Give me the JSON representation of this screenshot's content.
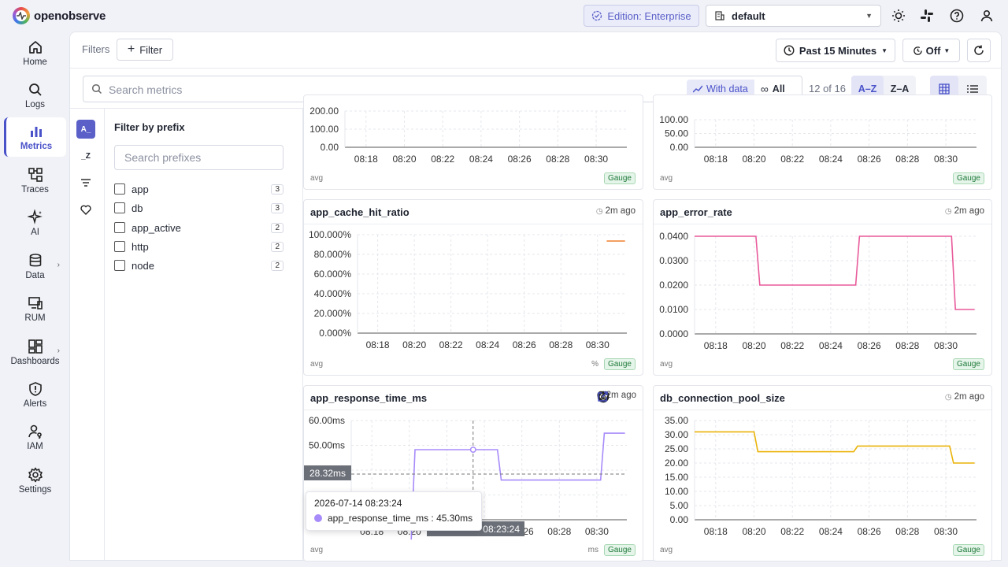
{
  "app": {
    "logo_text": "openobserve"
  },
  "header": {
    "edition_label": "Edition: Enterprise",
    "org_value": "default"
  },
  "sidebar": {
    "items": [
      {
        "label": "Home"
      },
      {
        "label": "Logs"
      },
      {
        "label": "Metrics"
      },
      {
        "label": "Traces"
      },
      {
        "label": "AI"
      },
      {
        "label": "Data"
      },
      {
        "label": "RUM"
      },
      {
        "label": "Dashboards"
      },
      {
        "label": "Alerts"
      },
      {
        "label": "IAM"
      },
      {
        "label": "Settings"
      }
    ]
  },
  "toolbar": {
    "filters_label": "Filters",
    "add_filter_label": "Filter",
    "time_range": "Past 15 Minutes",
    "refresh_interval": "Off"
  },
  "search": {
    "placeholder": "Search metrics",
    "with_data": "With data",
    "all": "All",
    "count": "12 of 16",
    "sort_az": "A–Z",
    "sort_za": "Z–A"
  },
  "rail": {
    "az": "A_",
    "z": "_Z"
  },
  "prefix": {
    "title": "Filter by prefix",
    "search_placeholder": "Search prefixes",
    "items": [
      {
        "label": "app",
        "count": "3"
      },
      {
        "label": "db",
        "count": "3"
      },
      {
        "label": "app_active",
        "count": "2"
      },
      {
        "label": "http",
        "count": "2"
      },
      {
        "label": "node",
        "count": "2"
      }
    ]
  },
  "cards": {
    "top_left": {
      "agg": "avg",
      "type": "Gauge"
    },
    "top_right": {
      "agg": "avg",
      "type": "Gauge"
    },
    "cache": {
      "title": "app_cache_hit_ratio",
      "age": "2m ago",
      "agg": "avg",
      "unit": "%",
      "type": "Gauge"
    },
    "error": {
      "title": "app_error_rate",
      "age": "2m ago",
      "agg": "avg",
      "type": "Gauge"
    },
    "response": {
      "title": "app_response_time_ms",
      "age": "2m ago",
      "agg": "avg",
      "unit": "ms",
      "type": "Gauge"
    },
    "pool": {
      "title": "db_connection_pool_size",
      "age": "2m ago",
      "agg": "avg",
      "type": "Gauge"
    }
  },
  "tooltip": {
    "time": "2026-07-14 08:23:24",
    "series": "app_response_time_ms : 45.30ms",
    "y_cursor": "28.32ms",
    "x_cursor": "08:23:24"
  },
  "chart_data": [
    {
      "type": "line",
      "name_ref": "top_left",
      "y_ticks": [
        "0.00",
        "100.00",
        "200.00"
      ],
      "x_ticks": [
        "08:18",
        "08:20",
        "08:22",
        "08:24",
        "08:26",
        "08:28",
        "08:30"
      ],
      "series": []
    },
    {
      "type": "line",
      "name_ref": "top_right",
      "y_ticks": [
        "0.00",
        "50.00",
        "100.00"
      ],
      "x_ticks": [
        "08:18",
        "08:20",
        "08:22",
        "08:24",
        "08:26",
        "08:28",
        "08:30"
      ],
      "series": []
    },
    {
      "type": "line",
      "title": "app_cache_hit_ratio",
      "y_ticks": [
        "0.000%",
        "20.000%",
        "40.000%",
        "60.000%",
        "80.000%",
        "100.000%"
      ],
      "ylim": [
        0,
        100
      ],
      "x_ticks": [
        "08:18",
        "08:20",
        "08:22",
        "08:24",
        "08:26",
        "08:28",
        "08:30"
      ],
      "series": [
        {
          "color": "#f08a3c",
          "x": [
            30.5,
            31.5
          ],
          "y": [
            93.5,
            93.5
          ]
        }
      ]
    },
    {
      "type": "line",
      "title": "app_error_rate",
      "y_ticks": [
        "0.0000",
        "0.0100",
        "0.0200",
        "0.0300",
        "0.0400"
      ],
      "ylim": [
        0,
        0.04
      ],
      "x_ticks": [
        "08:18",
        "08:20",
        "08:22",
        "08:24",
        "08:26",
        "08:28",
        "08:30"
      ],
      "series": [
        {
          "color": "#e85a9a",
          "x": [
            16.9,
            20.1,
            20.3,
            25.3,
            25.5,
            30.3,
            30.5,
            31.5
          ],
          "y": [
            0.04,
            0.04,
            0.02,
            0.02,
            0.04,
            0.04,
            0.01,
            0.01
          ]
        }
      ]
    },
    {
      "type": "line",
      "title": "app_response_time_ms",
      "y_ticks": [
        "20.00ms",
        "30.00ms",
        "40.00ms",
        "50.00ms",
        "60.00ms"
      ],
      "ylim": [
        10,
        60
      ],
      "x_ticks": [
        "08:18",
        "08:20",
        "08:22",
        "08:24",
        "08:26",
        "08:28",
        "08:30"
      ],
      "series": [
        {
          "color": "#a78bfa",
          "x": [
            20.1,
            20.3,
            24.7,
            24.9,
            30.2,
            30.4,
            31.5
          ],
          "y": [
            0,
            45.3,
            45.3,
            30,
            30,
            53.6,
            53.6
          ]
        }
      ]
    },
    {
      "type": "line",
      "title": "db_connection_pool_size",
      "y_ticks": [
        "0.00",
        "5.00",
        "10.00",
        "15.00",
        "20.00",
        "25.00",
        "30.00",
        "35.00"
      ],
      "ylim": [
        0,
        35
      ],
      "x_ticks": [
        "08:18",
        "08:20",
        "08:22",
        "08:24",
        "08:26",
        "08:28",
        "08:30"
      ],
      "series": [
        {
          "color": "#eab308",
          "x": [
            16.9,
            20.0,
            20.2,
            25.2,
            25.4,
            30.2,
            30.4,
            31.5
          ],
          "y": [
            31,
            31,
            24,
            24,
            26,
            26,
            20,
            20
          ]
        }
      ]
    }
  ]
}
